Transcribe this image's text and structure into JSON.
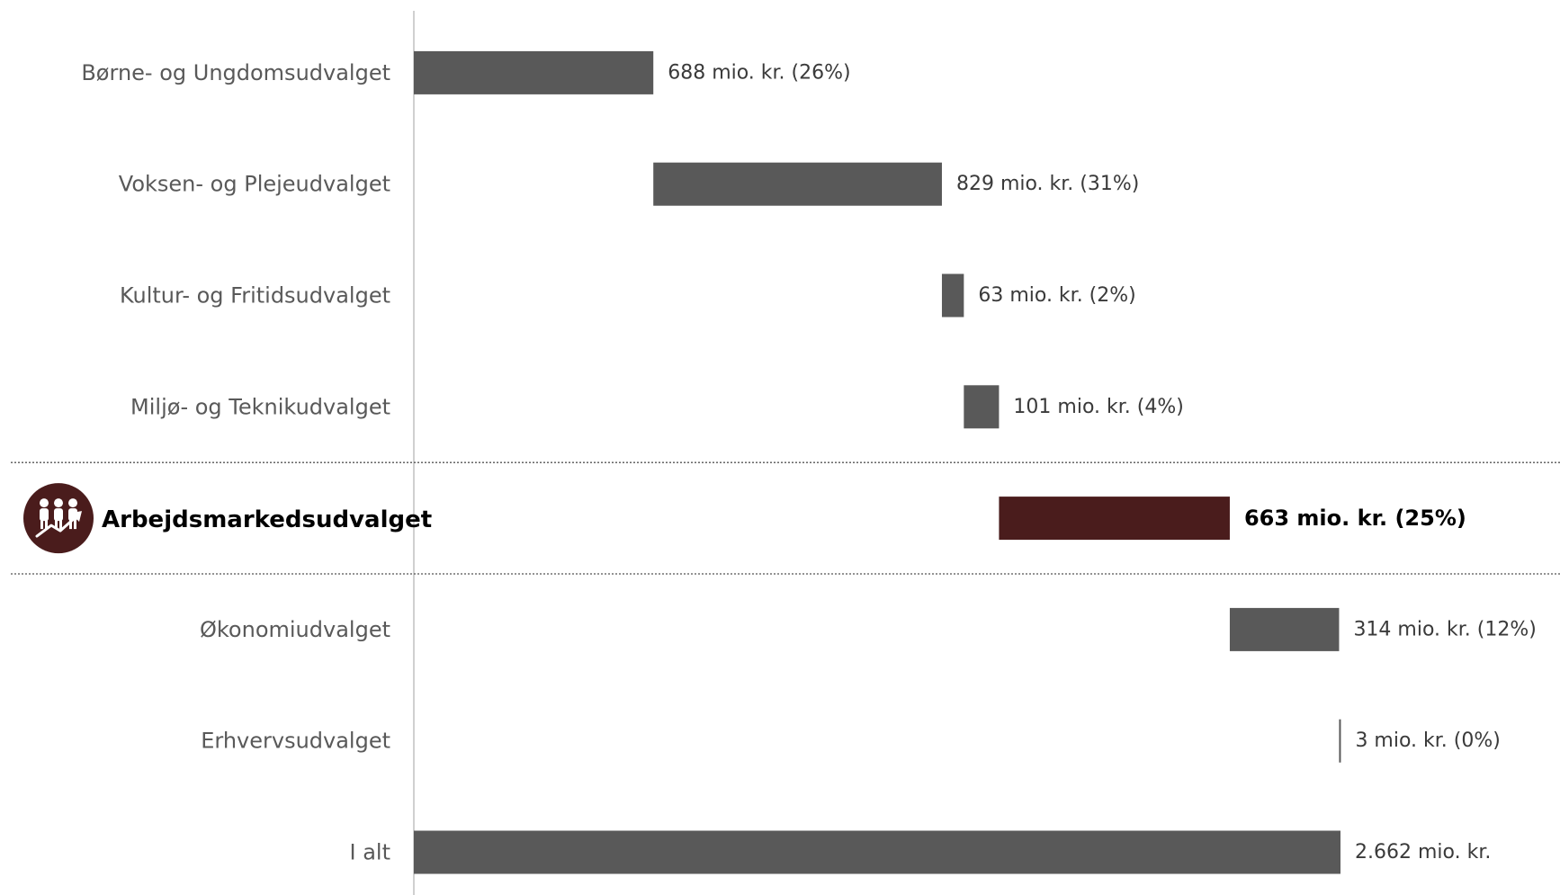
{
  "chart_data": {
    "type": "bar",
    "subtype": "waterfall",
    "orientation": "horizontal",
    "title": "",
    "xlabel": "",
    "ylabel": "",
    "grid": false,
    "legend": "none",
    "unit": "mio. kr.",
    "categories": [
      "Børne- og Ungdomsudvalget",
      "Voksen- og Plejeudvalget",
      "Kultur- og Fritidsudvalget",
      "Miljø- og Teknikudvalget",
      "Arbejdsmarkedsudvalget",
      "Økonomiudvalget",
      "Erhvervsudvalget",
      "I alt"
    ],
    "values": [
      688,
      829,
      63,
      101,
      663,
      314,
      3,
      2662
    ],
    "labels": [
      "688 mio. kr. (26%)",
      "829 mio. kr. (31%)",
      "63 mio. kr. (2%)",
      "101 mio. kr. (4%)",
      "663 mio. kr. (25%)",
      "314 mio. kr. (12%)",
      "3 mio. kr. (0%)",
      "2.662 mio. kr."
    ],
    "total_index": 7,
    "highlight_index": 4,
    "xlim": [
      0,
      2662
    ],
    "colors": {
      "bar": "#595959",
      "highlight": "#4a1c1c",
      "axis": "#d0d0d0",
      "separator": "#555555"
    },
    "highlight_icon": "people-growth-icon"
  }
}
